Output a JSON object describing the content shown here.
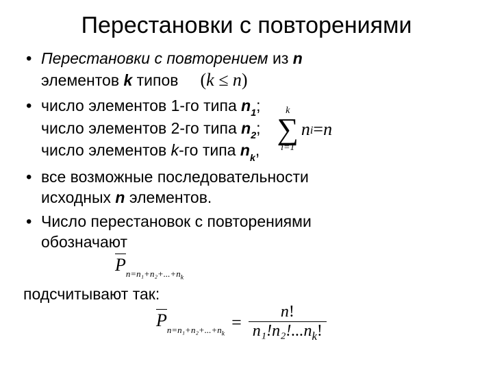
{
  "title": "Перестановки с повторениями",
  "bullets": {
    "b1_prefix_ital": "Перестановки с повторением",
    "b1_mid": " из ",
    "b1_n": "n",
    "b1_tail1": "элементов ",
    "b1_k": "k",
    "b1_tail2": " типов",
    "b1_math": "(k ≤ n)",
    "b2_l1a": "число элементов 1-го типа ",
    "b2_l1n": "n",
    "b2_l1s": "1",
    "b2_l1e": ";",
    "b2_l2a": "число элементов 2-го типа ",
    "b2_l2n": "n",
    "b2_l2s": "2",
    "b2_l2e": ";",
    "b2_l3a": "число элементов ",
    "b2_l3k": "k",
    "b2_l3b": "-го типа ",
    "b2_l3n": "n",
    "b2_l3s": "k",
    "b2_l3e": ",",
    "sum_top": "k",
    "sum_bot": "i=1",
    "sum_body_n": "n",
    "sum_body_i": "i",
    "sum_eq": " = ",
    "sum_rhs": "n",
    "b3a": "все возможные последовательности",
    "b3b": "исходных ",
    "b3n": "n",
    "b3c": " элементов.",
    "b4a": " Число перестановок с повторениями",
    "b4b": "обозначают"
  },
  "pbar": {
    "P": "P",
    "sub": "n=n₁+n₂+...+n",
    "sub_k": "k"
  },
  "final_text": "подсчитывают так:",
  "formula": {
    "eq": "=",
    "num": "n!",
    "den": "n₁!n₂!...n",
    "den_k": "k",
    "den_tail": "!"
  },
  "colors": {
    "bg": "#ffffff",
    "text": "#000000"
  }
}
